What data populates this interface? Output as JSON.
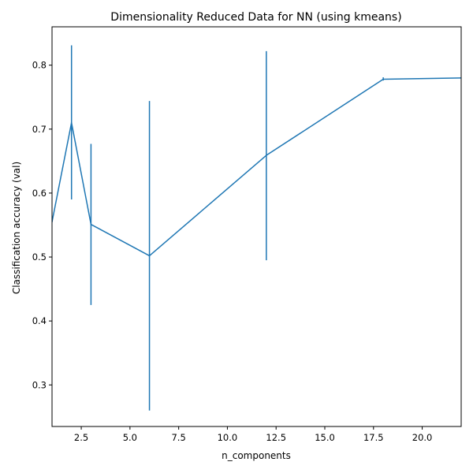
{
  "chart_data": {
    "type": "line",
    "title": "Dimensionality Reduced Data for NN (using kmeans)",
    "xlabel": "n_components",
    "ylabel": "Classification accuracy (val)",
    "xlim": [
      1,
      22
    ],
    "ylim": [
      0.235,
      0.86
    ],
    "x_ticks": [
      2.5,
      5.0,
      7.5,
      10.0,
      12.5,
      15.0,
      17.5,
      20.0
    ],
    "x_tick_labels": [
      "2.5",
      "5.0",
      "7.5",
      "10.0",
      "12.5",
      "15.0",
      "17.5",
      "20.0"
    ],
    "y_ticks": [
      0.3,
      0.4,
      0.5,
      0.6,
      0.7,
      0.8
    ],
    "y_tick_labels": [
      "0.3",
      "0.4",
      "0.5",
      "0.6",
      "0.7",
      "0.8"
    ],
    "grid": false,
    "legend": "none",
    "series": [
      {
        "color": "#1f77b4",
        "x": [
          1,
          2,
          3,
          6,
          12,
          18,
          22
        ],
        "y": [
          0.555,
          0.71,
          0.551,
          0.502,
          0.659,
          0.778,
          0.78
        ],
        "error_low": [
          null,
          0.59,
          0.425,
          0.26,
          0.495,
          0.776,
          null
        ],
        "error_high": [
          null,
          0.831,
          0.677,
          0.744,
          0.822,
          0.781,
          null
        ]
      }
    ]
  }
}
